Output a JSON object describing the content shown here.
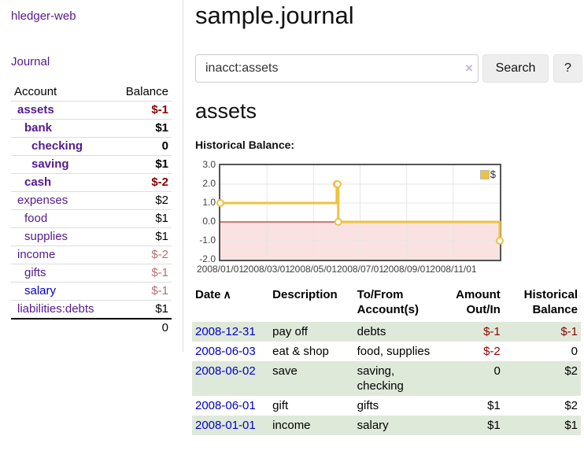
{
  "app": {
    "title": "hledger-web"
  },
  "sidebar": {
    "journal_link": "Journal",
    "headers": {
      "account": "Account",
      "balance": "Balance"
    },
    "accounts": [
      {
        "name": "assets",
        "balance": "$-1"
      },
      {
        "name": "bank",
        "balance": "$1"
      },
      {
        "name": "checking",
        "balance": "0"
      },
      {
        "name": "saving",
        "balance": "$1"
      },
      {
        "name": "cash",
        "balance": "$-2"
      },
      {
        "name": "expenses",
        "balance": "$2"
      },
      {
        "name": "food",
        "balance": "$1"
      },
      {
        "name": "supplies",
        "balance": "$1"
      },
      {
        "name": "income",
        "balance": "$-2"
      },
      {
        "name": "gifts",
        "balance": "$-1"
      },
      {
        "name": "salary",
        "balance": "$-1"
      },
      {
        "name": "liabilities:debts",
        "balance": "$1"
      }
    ],
    "total": "0"
  },
  "header": {
    "title": "sample.journal"
  },
  "search": {
    "value": "inacct:assets",
    "clear_icon": "×",
    "button_label": "Search",
    "help_label": "?"
  },
  "account_page": {
    "heading": "assets",
    "section_label": "Historical Balance:"
  },
  "chart_data": {
    "type": "line",
    "style": "step",
    "title": "Historical Balance",
    "series": [
      {
        "name": "$",
        "color": "#edc240",
        "points": [
          [
            "2008-01-01",
            1
          ],
          [
            "2008-06-01",
            2
          ],
          [
            "2008-06-02",
            2
          ],
          [
            "2008-06-03",
            0
          ],
          [
            "2008-12-31",
            -1
          ]
        ]
      }
    ],
    "ylim": [
      -2,
      3
    ],
    "yticks": [
      "3.0",
      "2.0",
      "1.0",
      "0.0",
      "-1.0",
      "-2.0"
    ],
    "xticks": [
      "2008/01/01",
      "2008/03/01",
      "2008/05/01",
      "2008/07/01",
      "2008/09/01",
      "2008/11/01"
    ],
    "legend_position": "top-right",
    "grid": true,
    "zero_line_color": "#a40000",
    "negative_region_color": "#fbe2e2",
    "plot_border_color": "#545454"
  },
  "register": {
    "columns": [
      {
        "label": "Date",
        "sort_indicator": "∧"
      },
      {
        "label": "Description"
      },
      {
        "label": "To/From Account(s)"
      },
      {
        "label": "Amount Out/In"
      },
      {
        "label": "Historical Balance"
      }
    ],
    "rows": [
      {
        "date": "2008-12-31",
        "description": "pay off",
        "accounts": "debts",
        "amount": "$-1",
        "balance": "$-1"
      },
      {
        "date": "2008-06-03",
        "description": "eat & shop",
        "accounts": "food, supplies",
        "amount": "$-2",
        "balance": "0"
      },
      {
        "date": "2008-06-02",
        "description": "save",
        "accounts": "saving, checking",
        "amount": "0",
        "balance": "$2"
      },
      {
        "date": "2008-06-01",
        "description": "gift",
        "accounts": "gifts",
        "amount": "$1",
        "balance": "$2"
      },
      {
        "date": "2008-01-01",
        "description": "income",
        "accounts": "salary",
        "amount": "$1",
        "balance": "$1"
      }
    ]
  }
}
